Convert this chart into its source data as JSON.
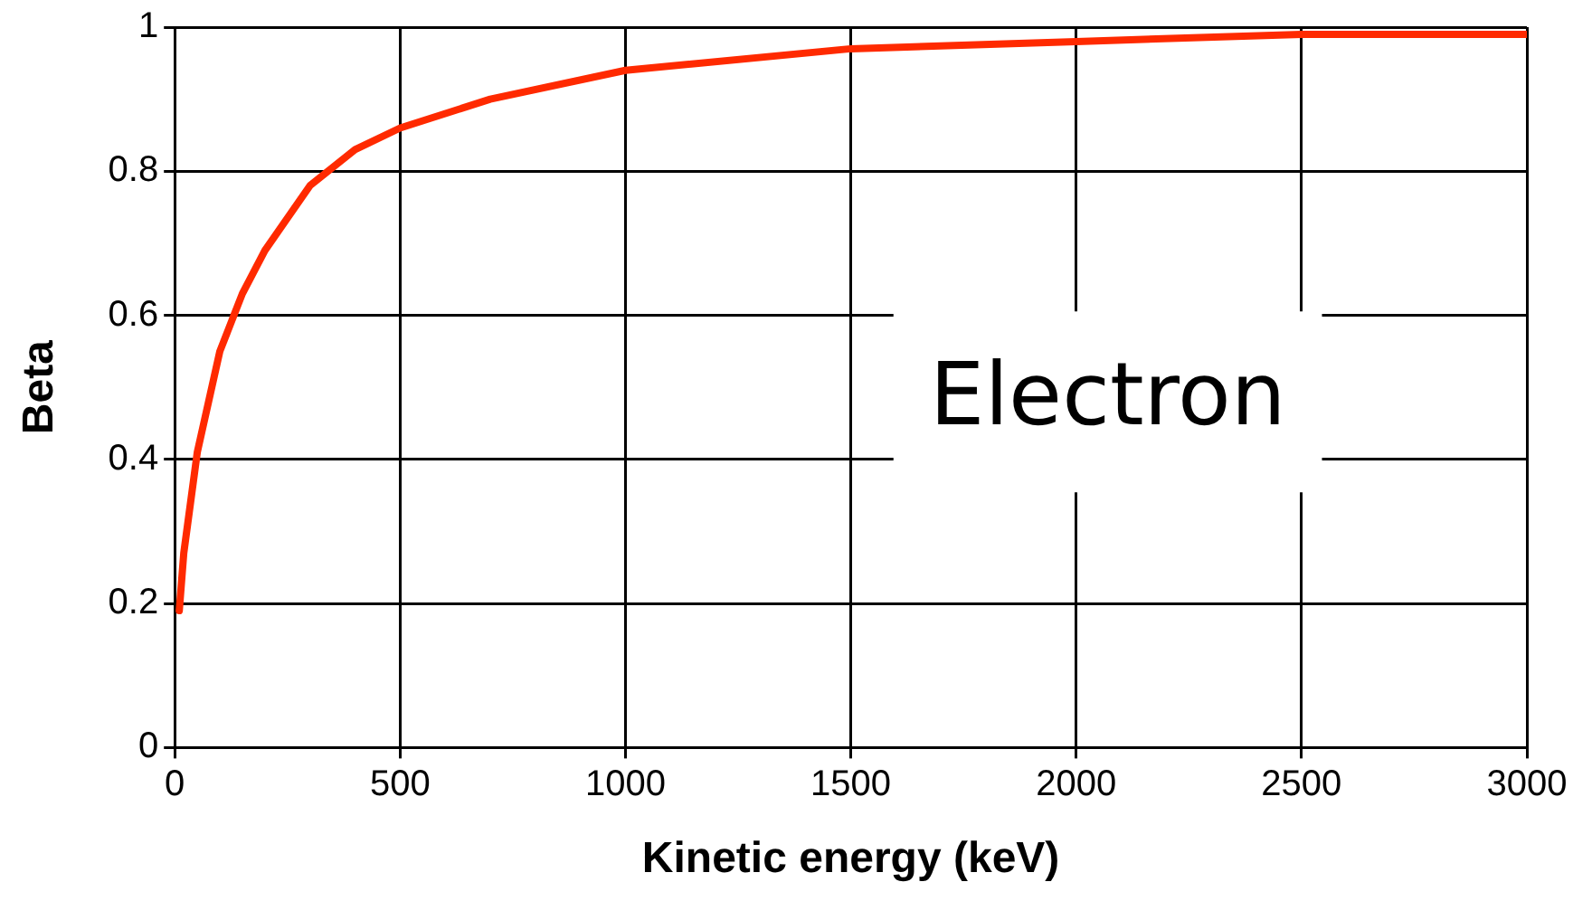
{
  "chart_data": {
    "type": "line",
    "xlabel": "Kinetic energy (keV)",
    "ylabel": "Beta",
    "x": [
      10,
      20,
      50,
      100,
      150,
      200,
      300,
      400,
      500,
      700,
      1000,
      1500,
      2000,
      2500,
      3000
    ],
    "series": [
      {
        "color": "#ff2a00",
        "values": [
          0.19,
          0.27,
          0.41,
          0.55,
          0.63,
          0.69,
          0.78,
          0.83,
          0.86,
          0.9,
          0.94,
          0.97,
          0.98,
          0.99,
          0.99
        ]
      }
    ],
    "xlim": [
      0,
      3000
    ],
    "xticks": [
      0,
      500,
      1000,
      1500,
      2000,
      2500,
      3000
    ],
    "ylim": [
      0,
      1
    ],
    "yticks": [
      0,
      0.2,
      0.4,
      0.6,
      0.8,
      1
    ],
    "grid": true,
    "legend": false,
    "marker": "none",
    "line_style": "solid",
    "annotations": [
      "Electron"
    ]
  }
}
